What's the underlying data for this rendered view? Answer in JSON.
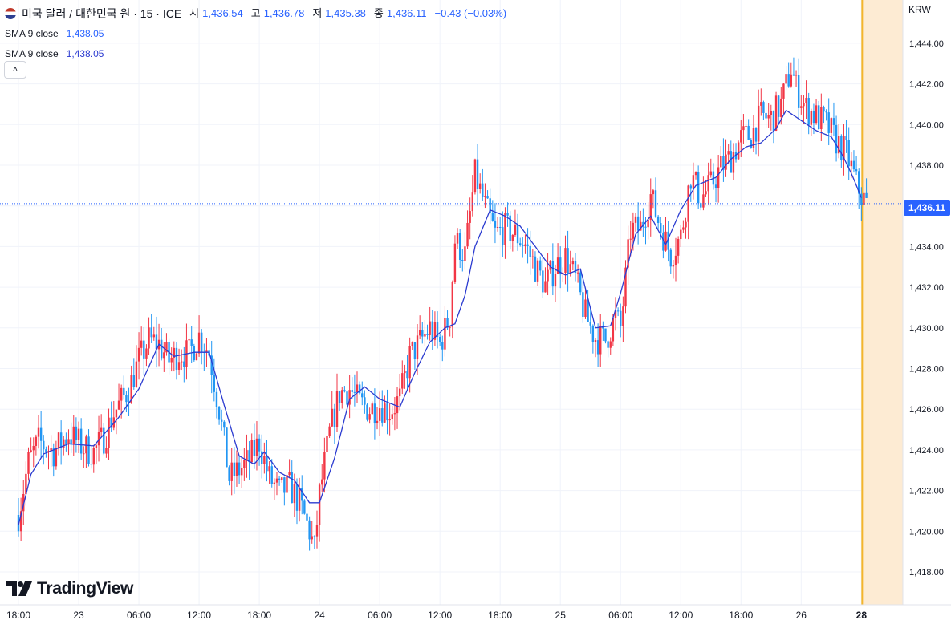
{
  "header": {
    "symbol": "미국 달러 / 대한민국 원 · 15 · ICE",
    "open_label": "시",
    "open_value": "1,436.54",
    "high_label": "고",
    "high_value": "1,436.78",
    "low_label": "저",
    "low_value": "1,435.38",
    "close_label": "종",
    "close_value": "1,436.11",
    "change": "−0.43 (−0.03%)",
    "indicators": [
      {
        "label": "SMA 9 close",
        "value": "1,438.05"
      },
      {
        "label": "SMA 9 close",
        "value": "1,438.05"
      }
    ],
    "collapse_icon": "chevron-up-icon"
  },
  "price_axis": {
    "unit": "KRW",
    "current_price_label": "1,436.11"
  },
  "logo_text": "TradingView",
  "colors": {
    "up": "#f23645",
    "down": "#2196f3",
    "sma": "#2b3bd0",
    "accent": "#2962ff",
    "session_highlight": "#fdebd3",
    "session_line": "#f3b52c"
  },
  "chart_data": {
    "type": "candlestick",
    "title": "미국 달러 / 대한민국 원 · 15 · ICE",
    "y_unit": "KRW",
    "ylim": [
      1416.0,
      1446.0
    ],
    "y_ticks": [
      "1,418.00",
      "1,420.00",
      "1,422.00",
      "1,424.00",
      "1,426.00",
      "1,428.00",
      "1,430.00",
      "1,432.00",
      "1,434.00",
      "1,436.00",
      "1,438.00",
      "1,440.00",
      "1,442.00",
      "1,444.00"
    ],
    "y_tick_values": [
      1418,
      1420,
      1422,
      1424,
      1426,
      1428,
      1430,
      1432,
      1434,
      1436,
      1438,
      1440,
      1442,
      1444
    ],
    "x_ticks": [
      {
        "label": "18:00",
        "bar": 0
      },
      {
        "label": "23",
        "bar": 24
      },
      {
        "label": "06:00",
        "bar": 48
      },
      {
        "label": "12:00",
        "bar": 72
      },
      {
        "label": "18:00",
        "bar": 96
      },
      {
        "label": "24",
        "bar": 120
      },
      {
        "label": "06:00",
        "bar": 144
      },
      {
        "label": "12:00",
        "bar": 168
      },
      {
        "label": "18:00",
        "bar": 192
      },
      {
        "label": "25",
        "bar": 216
      },
      {
        "label": "06:00",
        "bar": 240
      },
      {
        "label": "12:00",
        "bar": 264
      },
      {
        "label": "18:00",
        "bar": 288
      },
      {
        "label": "26",
        "bar": 312
      },
      {
        "label": "28",
        "bar": 336
      }
    ],
    "bar_count": 340,
    "grid": true,
    "last_price": 1436.11,
    "series": [
      {
        "name": "SMA 9 close",
        "type": "line",
        "anchors": [
          [
            0,
            1420.3
          ],
          [
            5,
            1422.8
          ],
          [
            10,
            1423.8
          ],
          [
            20,
            1424.3
          ],
          [
            30,
            1424.2
          ],
          [
            40,
            1425.6
          ],
          [
            48,
            1427.0
          ],
          [
            56,
            1429.2
          ],
          [
            62,
            1428.6
          ],
          [
            70,
            1428.8
          ],
          [
            76,
            1428.8
          ],
          [
            82,
            1426.2
          ],
          [
            88,
            1423.7
          ],
          [
            94,
            1423.3
          ],
          [
            98,
            1423.9
          ],
          [
            104,
            1422.9
          ],
          [
            110,
            1422.5
          ],
          [
            116,
            1421.4
          ],
          [
            120,
            1421.4
          ],
          [
            126,
            1423.6
          ],
          [
            132,
            1426.5
          ],
          [
            138,
            1427.1
          ],
          [
            144,
            1426.5
          ],
          [
            152,
            1426.1
          ],
          [
            158,
            1427.8
          ],
          [
            164,
            1429.3
          ],
          [
            170,
            1430.0
          ],
          [
            174,
            1430.2
          ],
          [
            178,
            1431.6
          ],
          [
            182,
            1434.0
          ],
          [
            188,
            1435.8
          ],
          [
            194,
            1435.5
          ],
          [
            200,
            1435.0
          ],
          [
            206,
            1434.0
          ],
          [
            212,
            1433.0
          ],
          [
            218,
            1432.6
          ],
          [
            224,
            1432.9
          ],
          [
            230,
            1430.0
          ],
          [
            236,
            1430.1
          ],
          [
            240,
            1431.7
          ],
          [
            246,
            1434.6
          ],
          [
            252,
            1435.5
          ],
          [
            258,
            1434.1
          ],
          [
            264,
            1435.8
          ],
          [
            270,
            1437.0
          ],
          [
            278,
            1437.4
          ],
          [
            284,
            1438.3
          ],
          [
            290,
            1438.9
          ],
          [
            296,
            1439.1
          ],
          [
            302,
            1439.8
          ],
          [
            306,
            1440.7
          ],
          [
            312,
            1440.2
          ],
          [
            318,
            1439.7
          ],
          [
            324,
            1439.4
          ],
          [
            328,
            1438.6
          ],
          [
            332,
            1437.6
          ],
          [
            336,
            1436.4
          ]
        ]
      },
      {
        "name": "price",
        "type": "candle",
        "anchors": [
          [
            0,
            1420.8
          ],
          [
            4,
            1423.4
          ],
          [
            8,
            1424.4
          ],
          [
            14,
            1423.9
          ],
          [
            20,
            1424.8
          ],
          [
            26,
            1424.1
          ],
          [
            30,
            1423.9
          ],
          [
            34,
            1424.6
          ],
          [
            38,
            1425.8
          ],
          [
            44,
            1427.0
          ],
          [
            48,
            1428.4
          ],
          [
            52,
            1429.4
          ],
          [
            56,
            1429.2
          ],
          [
            60,
            1428.4
          ],
          [
            64,
            1428.8
          ],
          [
            68,
            1428.7
          ],
          [
            72,
            1429.6
          ],
          [
            76,
            1428.8
          ],
          [
            80,
            1426.0
          ],
          [
            84,
            1422.6
          ],
          [
            88,
            1423.0
          ],
          [
            92,
            1423.5
          ],
          [
            96,
            1424.4
          ],
          [
            100,
            1422.6
          ],
          [
            104,
            1421.9
          ],
          [
            108,
            1422.2
          ],
          [
            112,
            1421.4
          ],
          [
            116,
            1420.0
          ],
          [
            118,
            1419.1
          ],
          [
            120,
            1421.8
          ],
          [
            124,
            1424.8
          ],
          [
            128,
            1426.8
          ],
          [
            132,
            1427.0
          ],
          [
            136,
            1426.3
          ],
          [
            140,
            1426.0
          ],
          [
            144,
            1426.2
          ],
          [
            148,
            1425.9
          ],
          [
            152,
            1426.5
          ],
          [
            156,
            1428.6
          ],
          [
            160,
            1429.3
          ],
          [
            164,
            1430.0
          ],
          [
            168,
            1429.2
          ],
          [
            172,
            1430.6
          ],
          [
            174,
            1434.3
          ],
          [
            178,
            1433.6
          ],
          [
            182,
            1437.5
          ],
          [
            186,
            1436.0
          ],
          [
            190,
            1434.6
          ],
          [
            194,
            1434.9
          ],
          [
            198,
            1434.6
          ],
          [
            202,
            1434.1
          ],
          [
            206,
            1433.0
          ],
          [
            210,
            1432.1
          ],
          [
            214,
            1433.0
          ],
          [
            218,
            1433.5
          ],
          [
            222,
            1432.4
          ],
          [
            226,
            1430.6
          ],
          [
            230,
            1429.5
          ],
          [
            234,
            1429.4
          ],
          [
            238,
            1430.5
          ],
          [
            240,
            1430.0
          ],
          [
            244,
            1434.8
          ],
          [
            248,
            1434.9
          ],
          [
            252,
            1436.5
          ],
          [
            256,
            1434.9
          ],
          [
            260,
            1433.6
          ],
          [
            264,
            1434.5
          ],
          [
            268,
            1437.5
          ],
          [
            272,
            1436.4
          ],
          [
            276,
            1437.0
          ],
          [
            280,
            1437.9
          ],
          [
            284,
            1438.4
          ],
          [
            288,
            1439.3
          ],
          [
            292,
            1439.5
          ],
          [
            296,
            1440.4
          ],
          [
            300,
            1440.3
          ],
          [
            304,
            1441.0
          ],
          [
            308,
            1442.8
          ],
          [
            310,
            1441.8
          ],
          [
            314,
            1440.8
          ],
          [
            318,
            1440.4
          ],
          [
            322,
            1440.0
          ],
          [
            326,
            1439.2
          ],
          [
            330,
            1438.6
          ],
          [
            334,
            1437.1
          ],
          [
            336,
            1436.5
          ],
          [
            338,
            1436.11
          ]
        ]
      }
    ]
  }
}
